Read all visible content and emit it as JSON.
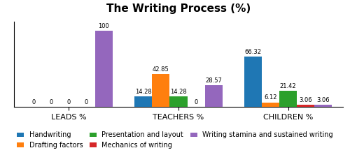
{
  "chart_data": {
    "type": "bar",
    "title": "The Writing Process (%)",
    "categories": [
      "LEADS %",
      "TEACHERS %",
      "CHILDREN %"
    ],
    "series": [
      {
        "name": "Handwriting",
        "values": [
          0,
          14.28,
          66.32
        ]
      },
      {
        "name": "Drafting factors",
        "values": [
          0,
          42.85,
          6.12
        ]
      },
      {
        "name": "Presentation and layout",
        "values": [
          0,
          14.28,
          21.42
        ]
      },
      {
        "name": "Mechanics of writing",
        "values": [
          0,
          0,
          3.06
        ]
      },
      {
        "name": "Writing stamina and sustained writing",
        "values": [
          100,
          28.57,
          3.06
        ]
      }
    ],
    "ylim": [
      0,
      112
    ],
    "data_labels": true,
    "tick_labels": "x",
    "grid": false,
    "legend": "lower center"
  }
}
